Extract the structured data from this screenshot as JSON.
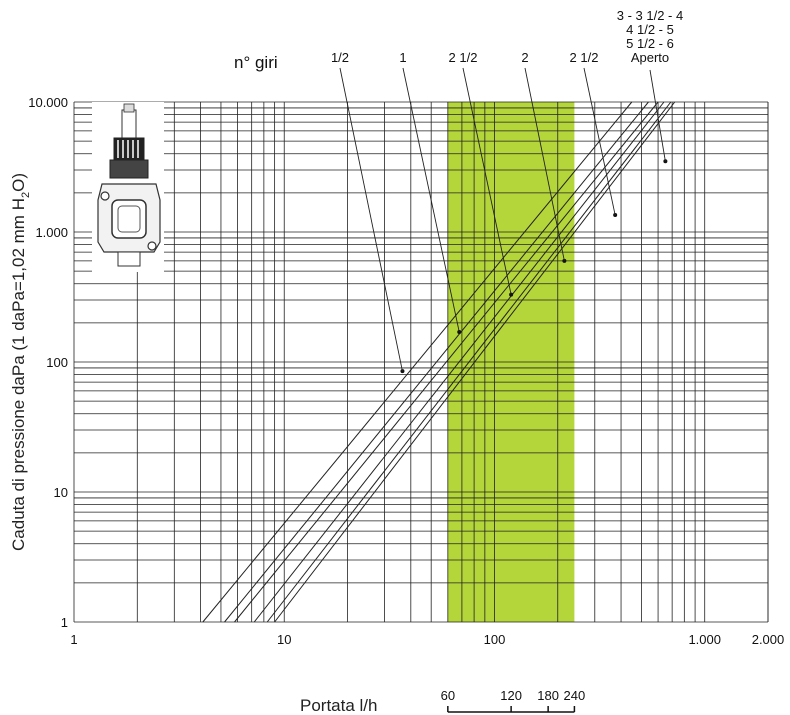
{
  "chart_data": {
    "type": "line",
    "xscale": "log",
    "yscale": "log",
    "xlim": [
      1,
      2000
    ],
    "ylim": [
      1,
      10000
    ],
    "xlabel": "Portata l/h",
    "ylabel": "Caduta di pressione daPa (1 daPa=1,02 mm H",
    "ylabel_sub": "2",
    "ylabel_end": "O)",
    "x_ticks": [
      {
        "value": 1,
        "label": "1"
      },
      {
        "value": 10,
        "label": "10"
      },
      {
        "value": 100,
        "label": "100"
      },
      {
        "value": 1000,
        "label": "1.000"
      },
      {
        "value": 2000,
        "label": "2.000"
      }
    ],
    "y_ticks": [
      {
        "value": 1,
        "label": "1"
      },
      {
        "value": 10,
        "label": "10"
      },
      {
        "value": 100,
        "label": "100"
      },
      {
        "value": 1000,
        "label": "1.000"
      },
      {
        "value": 10000,
        "label": "10.000"
      }
    ],
    "highlight_band": {
      "x_from": 60,
      "x_to": 240,
      "color": "#b5d63a"
    },
    "turns_label": "n° giri",
    "series": [
      {
        "name": "1/2",
        "x": [
          4.1,
          450
        ],
        "y": [
          1,
          10000
        ],
        "marker": [
          36.5,
          85
        ]
      },
      {
        "name": "1",
        "x": [
          5.2,
          540
        ],
        "y": [
          1,
          10000
        ],
        "marker": [
          68,
          170
        ]
      },
      {
        "name": "2 1/2",
        "x": [
          5.8,
          600
        ],
        "y": [
          1,
          10000
        ],
        "marker": [
          120,
          330
        ]
      },
      {
        "name": "2",
        "x": [
          7.2,
          640
        ],
        "y": [
          1,
          10000
        ],
        "marker": [
          215,
          600
        ]
      },
      {
        "name": "2 1/2",
        "x": [
          8.3,
          690
        ],
        "y": [
          1,
          10000
        ],
        "marker": [
          375,
          1350
        ]
      },
      {
        "name": "3 - 3 1/2 - 4",
        "x": [
          9.0,
          720
        ],
        "y": [
          1,
          10000
        ],
        "marker": [
          650,
          3500
        ]
      }
    ],
    "open_label_lines": [
      "3 - 3 1/2 - 4",
      "4 1/2 - 5",
      "5 1/2 - 6",
      "Aperto"
    ],
    "scale_bar": {
      "labels": [
        "60",
        "120",
        "180",
        "240"
      ]
    }
  }
}
